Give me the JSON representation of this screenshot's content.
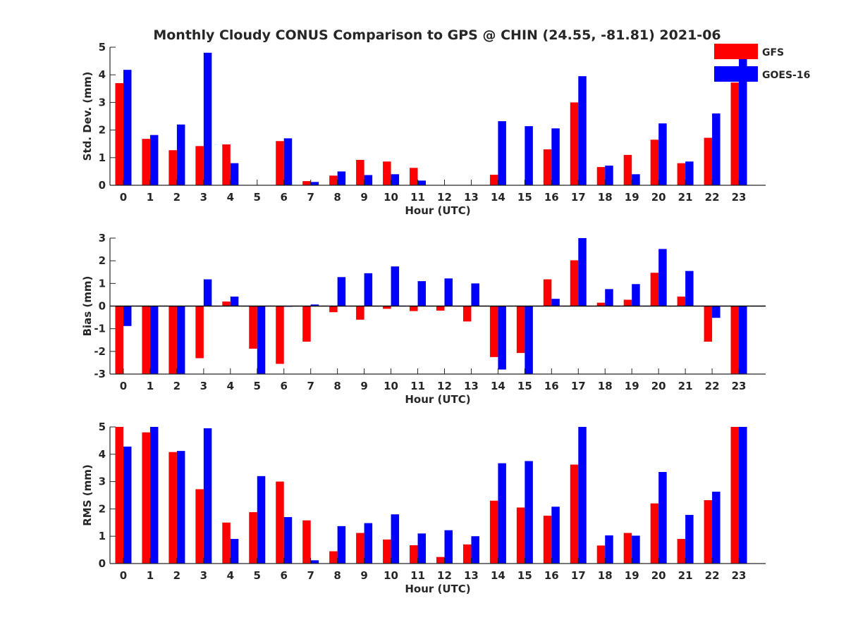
{
  "figure": {
    "title": "Monthly Cloudy CONUS Comparison to GPS @ CHIN (24.55, -81.81) 2021-06"
  },
  "legend": {
    "placement": "top-right",
    "entries": [
      {
        "label": "GFS",
        "color": "#ff0000"
      },
      {
        "label": "GOES-16",
        "color": "#0000ff"
      }
    ]
  },
  "chart_data": [
    {
      "type": "bar",
      "xlabel": "Hour (UTC)",
      "ylabel": "Std. Dev. (mm)",
      "ylim": [
        0,
        5
      ],
      "yticks": [
        0,
        1,
        2,
        3,
        4,
        5
      ],
      "categories": [
        "0",
        "1",
        "2",
        "3",
        "4",
        "5",
        "6",
        "7",
        "8",
        "9",
        "10",
        "11",
        "12",
        "13",
        "14",
        "15",
        "16",
        "17",
        "18",
        "19",
        "20",
        "21",
        "22",
        "23"
      ],
      "series": [
        {
          "name": "GFS",
          "color": "#ff0000",
          "values": [
            3.7,
            1.68,
            1.27,
            1.42,
            1.48,
            0,
            1.6,
            0.15,
            0.35,
            0.92,
            0.86,
            0.63,
            0,
            0,
            0.38,
            0,
            1.3,
            3.0,
            0.66,
            1.1,
            1.65,
            0.8,
            1.72,
            3.72
          ]
        },
        {
          "name": "GOES-16",
          "color": "#0000ff",
          "values": [
            4.18,
            1.82,
            2.2,
            4.8,
            0.8,
            0,
            1.7,
            0.12,
            0.5,
            0.37,
            0.4,
            0.17,
            0,
            0,
            2.32,
            2.14,
            2.06,
            3.95,
            0.71,
            0.4,
            2.24,
            0.86,
            2.6,
            5.0
          ]
        }
      ]
    },
    {
      "type": "bar",
      "xlabel": "Hour (UTC)",
      "ylabel": "Bias (mm)",
      "ylim": [
        -3,
        3
      ],
      "yticks": [
        -3,
        -2,
        -1,
        0,
        1,
        2,
        3
      ],
      "zero_line": true,
      "categories": [
        "0",
        "1",
        "2",
        "3",
        "4",
        "5",
        "6",
        "7",
        "8",
        "9",
        "10",
        "11",
        "12",
        "13",
        "14",
        "15",
        "16",
        "17",
        "18",
        "19",
        "20",
        "21",
        "22",
        "23"
      ],
      "series": [
        {
          "name": "GFS",
          "color": "#ff0000",
          "values": [
            -3.0,
            -3.0,
            -3.0,
            -2.3,
            0.2,
            -1.88,
            -2.55,
            -1.57,
            -0.27,
            -0.6,
            -0.12,
            -0.22,
            -0.2,
            -0.68,
            -2.25,
            -2.07,
            1.18,
            2.02,
            0.15,
            0.28,
            1.47,
            0.42,
            -1.57,
            -3.0
          ]
        },
        {
          "name": "GOES-16",
          "color": "#0000ff",
          "values": [
            -0.88,
            -3.0,
            -3.0,
            1.18,
            0.42,
            -3.0,
            -0.03,
            0.07,
            1.28,
            1.45,
            1.75,
            1.1,
            1.22,
            1.0,
            -2.8,
            -3.0,
            0.32,
            3.0,
            0.75,
            0.97,
            2.52,
            1.55,
            -0.52,
            -3.0
          ]
        }
      ]
    },
    {
      "type": "bar",
      "xlabel": "Hour (UTC)",
      "ylabel": "RMS (mm)",
      "ylim": [
        0,
        5
      ],
      "yticks": [
        0,
        1,
        2,
        3,
        4,
        5
      ],
      "categories": [
        "0",
        "1",
        "2",
        "3",
        "4",
        "5",
        "6",
        "7",
        "8",
        "9",
        "10",
        "11",
        "12",
        "13",
        "14",
        "15",
        "16",
        "17",
        "18",
        "19",
        "20",
        "21",
        "22",
        "23"
      ],
      "series": [
        {
          "name": "GFS",
          "color": "#ff0000",
          "values": [
            5.0,
            4.8,
            4.08,
            2.72,
            1.5,
            1.88,
            3.0,
            1.58,
            0.45,
            1.12,
            0.88,
            0.67,
            0.24,
            0.7,
            2.3,
            2.05,
            1.75,
            3.62,
            0.66,
            1.12,
            2.2,
            0.9,
            2.32,
            5.0
          ]
        },
        {
          "name": "GOES-16",
          "color": "#0000ff",
          "values": [
            4.28,
            5.0,
            4.12,
            4.95,
            0.9,
            3.2,
            1.7,
            0.12,
            1.37,
            1.48,
            1.8,
            1.1,
            1.22,
            1.0,
            3.67,
            3.75,
            2.08,
            5.0,
            1.03,
            1.02,
            3.35,
            1.78,
            2.63,
            5.0
          ]
        }
      ]
    }
  ]
}
